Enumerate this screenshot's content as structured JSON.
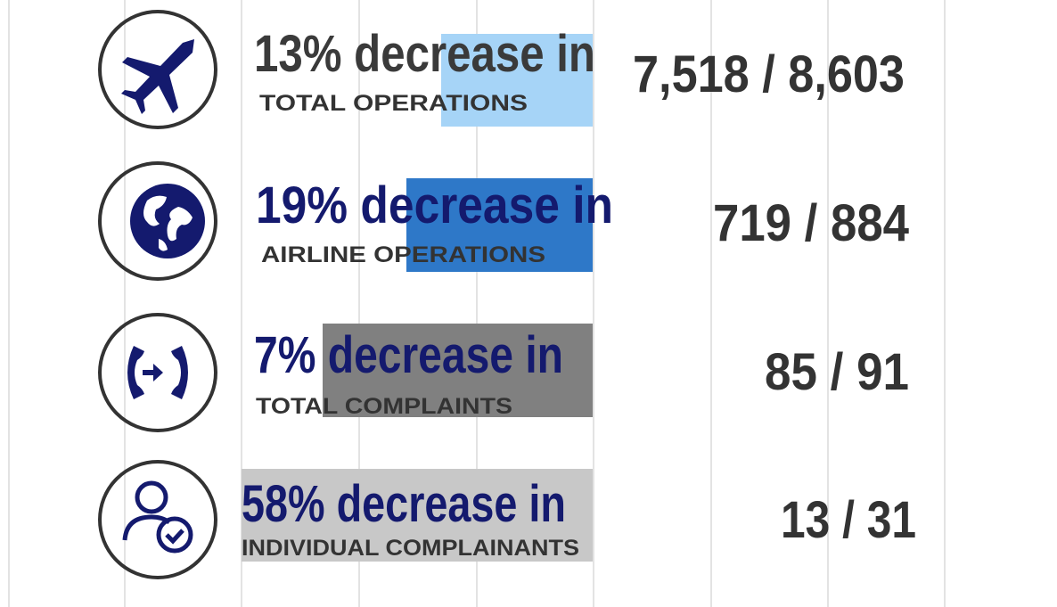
{
  "rows": [
    {
      "headline": "13% decrease in",
      "label": "TOTAL OPERATIONS",
      "ratio": "7,518 / 8,603"
    },
    {
      "headline": "19% decrease in",
      "label": "AIRLINE OPERATIONS",
      "ratio": "719 / 884"
    },
    {
      "headline": "7% decrease in",
      "label": "TOTAL COMPLAINTS",
      "ratio": "85 / 91"
    },
    {
      "headline": "58% decrease in",
      "label": "INDIVIDUAL COMPLAINANTS",
      "ratio": "13 / 31"
    }
  ]
}
